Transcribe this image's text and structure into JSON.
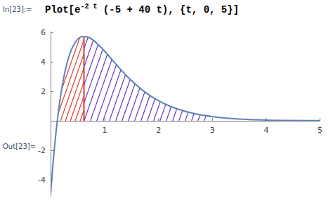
{
  "chart_data": {
    "type": "line",
    "title": [
      "Plot[e",
      "-2 t",
      " (-5 + 40 t), {t, 0, 5}]"
    ],
    "annotations": [
      "In[23]:=",
      "Out[23]="
    ],
    "x": [
      0,
      0.05,
      0.1,
      0.15,
      0.2,
      0.25,
      0.3,
      0.35,
      0.4,
      0.5,
      0.6,
      0.7,
      0.8,
      0.9,
      1,
      1.2,
      1.4,
      1.6,
      1.8,
      2,
      2.25,
      2.5,
      2.75,
      3,
      3.5,
      4,
      4.5,
      5
    ],
    "values": [
      -5,
      -2.71,
      -0.82,
      0.74,
      2.01,
      3.03,
      3.84,
      4.47,
      4.94,
      5.52,
      5.72,
      5.67,
      5.45,
      5.12,
      4.74,
      3.9,
      3.1,
      2.41,
      1.83,
      1.37,
      0.94,
      0.64,
      0.43,
      0.29,
      0.12,
      0.05,
      0.02,
      0.01
    ],
    "color": "#5e81b5",
    "xlim": [
      0,
      5
    ],
    "ylim": [
      -5.1,
      6.1
    ],
    "xticks": [
      1,
      2,
      3,
      4,
      5
    ],
    "yticks": [
      -4,
      -2,
      2,
      4,
      6
    ],
    "shaded_regions": [
      {
        "from": 0.13,
        "to": 0.62,
        "color": "#e0382a"
      },
      {
        "from": 0.62,
        "to": 2.92,
        "color": "#6a35c8"
      }
    ]
  }
}
